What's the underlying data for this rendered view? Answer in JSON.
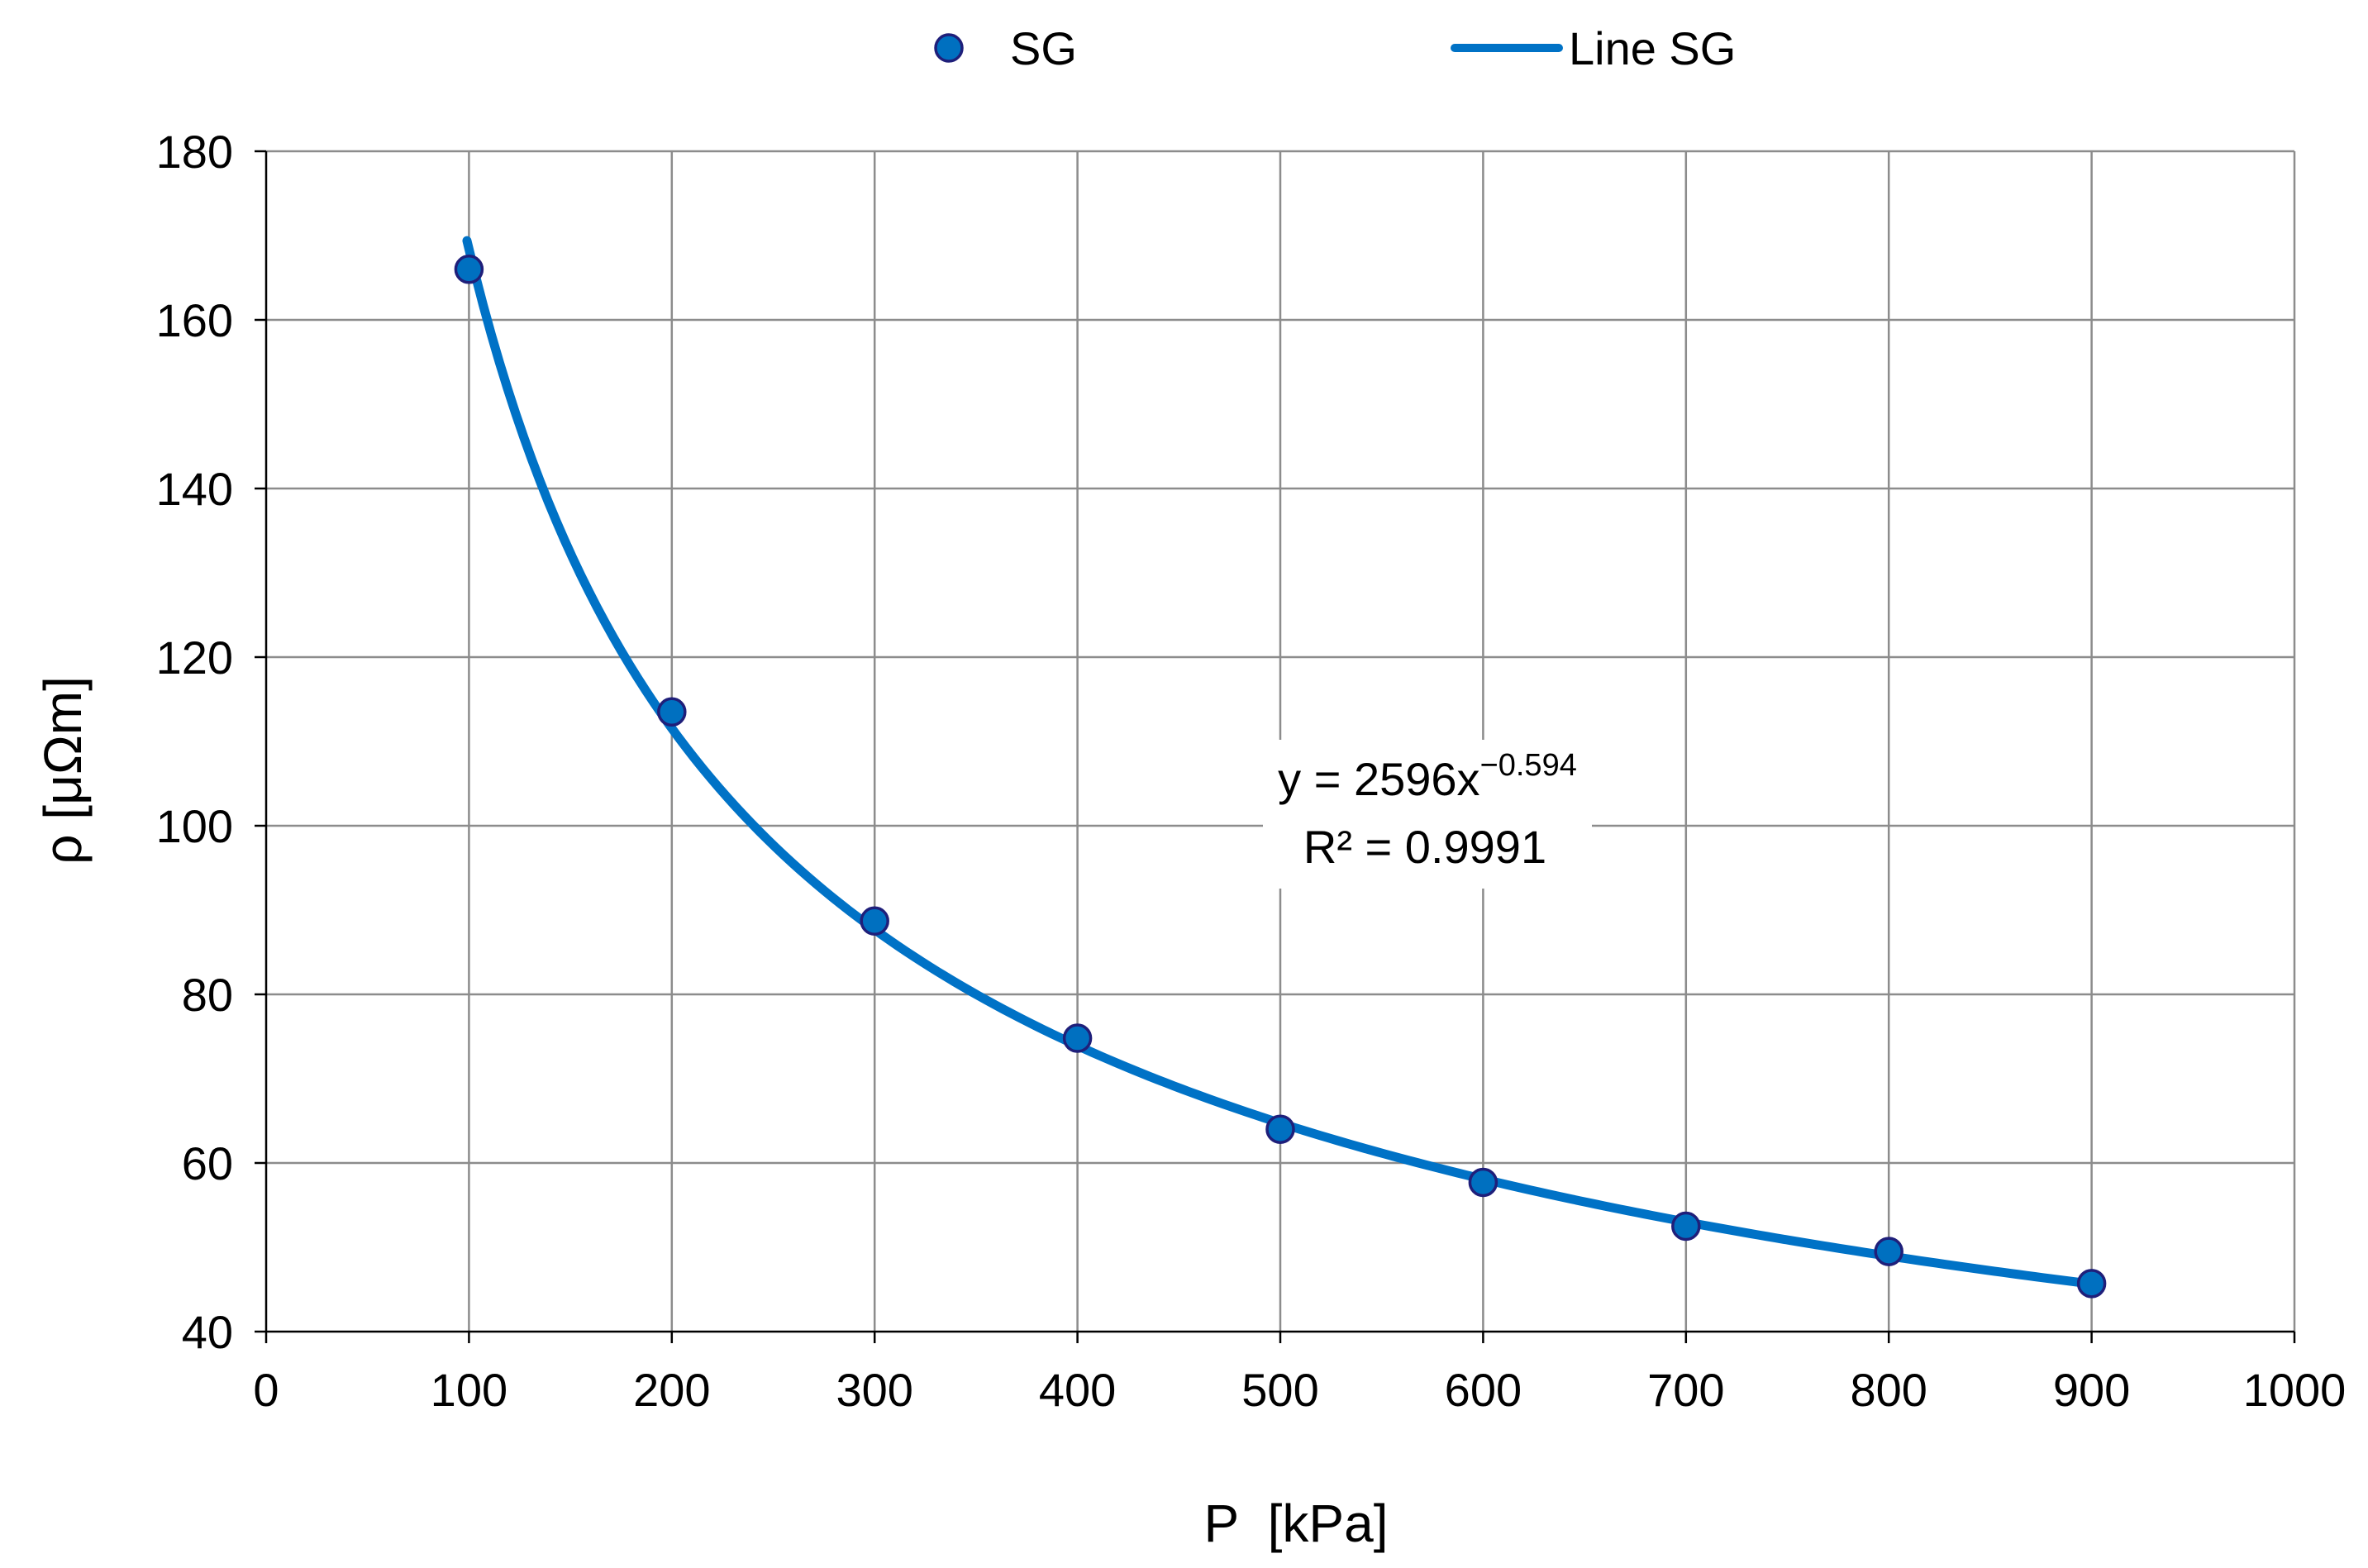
{
  "colors": {
    "series_fill": "#0070c0",
    "series_stroke": "#1f1f7a",
    "fit_line": "#0072c6",
    "grid": "#8c8c8c",
    "axis": "#000000"
  },
  "chart_data": {
    "type": "scatter",
    "title": "",
    "xlabel": "P  [kPa]",
    "ylabel": "ρ [μΩm]",
    "xlim": [
      0,
      1000
    ],
    "ylim": [
      40,
      180
    ],
    "xticks": [
      0,
      100,
      200,
      300,
      400,
      500,
      600,
      700,
      800,
      900,
      1000
    ],
    "yticks": [
      40,
      60,
      80,
      100,
      120,
      140,
      160,
      180
    ],
    "grid": true,
    "legend_position": "top-center",
    "series": [
      {
        "name": "SG",
        "kind": "markers",
        "x": [
          100,
          200,
          300,
          400,
          500,
          600,
          700,
          800,
          900
        ],
        "y": [
          166.0,
          113.5,
          88.7,
          74.8,
          64.0,
          57.7,
          52.5,
          49.5,
          45.7
        ]
      },
      {
        "name": "Line SG",
        "kind": "fit",
        "model": "power",
        "coefficient": 2596,
        "exponent": -0.594,
        "x_range": [
          100,
          900
        ]
      }
    ],
    "annotation": {
      "equation_prefix": "y = 2596x",
      "equation_exponent": "−0.594",
      "r_squared": "R² = 0.9991"
    }
  }
}
